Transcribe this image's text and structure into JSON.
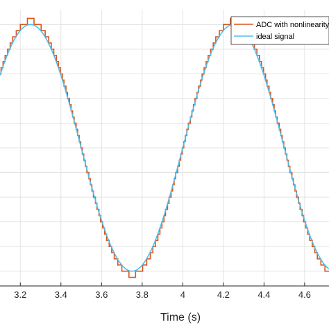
{
  "chart_data": {
    "type": "line",
    "title": "",
    "xlabel": "Time (s)",
    "ylabel": "",
    "xlim": [
      3.1,
      4.72
    ],
    "ylim": [
      -1.12,
      1.12
    ],
    "x_ticks": [
      3.2,
      3.4,
      3.6,
      3.8,
      4,
      4.2,
      4.4,
      4.6
    ],
    "x_tick_labels": [
      "3.2",
      "3.4",
      "3.6",
      "3.8",
      "4",
      "4.2",
      "4.4",
      "4.6"
    ],
    "grid": true,
    "legend_position": "top-right",
    "signal": {
      "frequency_hz": 1.0,
      "amplitude_ideal": 1.0,
      "amplitude_adc": 1.03,
      "peak_time_s": 3.25,
      "adc_step": 0.05
    },
    "series": [
      {
        "name": "ADC with nonlinearity",
        "color": "#d95319",
        "x": [
          3.1,
          3.15,
          3.2,
          3.25,
          3.3,
          3.35,
          3.4,
          3.45,
          3.5,
          3.55,
          3.6,
          3.65,
          3.7,
          3.75,
          3.8,
          3.85,
          3.9,
          3.95,
          4.0,
          4.05,
          4.1,
          4.15,
          4.2,
          4.25,
          4.3,
          4.35,
          4.4,
          4.45,
          4.5,
          4.55,
          4.6,
          4.65,
          4.7
        ],
        "y": [
          0.6,
          0.85,
          0.98,
          1.03,
          0.98,
          0.85,
          0.6,
          0.3,
          0.0,
          -0.3,
          -0.6,
          -0.85,
          -0.98,
          -1.03,
          -0.98,
          -0.85,
          -0.6,
          -0.3,
          0.0,
          0.3,
          0.6,
          0.85,
          0.98,
          1.03,
          0.98,
          0.85,
          0.6,
          0.3,
          0.0,
          -0.3,
          -0.6,
          -0.85,
          -0.98
        ]
      },
      {
        "name": "ideal signal",
        "color": "#4dbeee",
        "x": [
          3.1,
          3.15,
          3.2,
          3.25,
          3.3,
          3.35,
          3.4,
          3.45,
          3.5,
          3.55,
          3.6,
          3.65,
          3.7,
          3.75,
          3.8,
          3.85,
          3.9,
          3.95,
          4.0,
          4.05,
          4.1,
          4.15,
          4.2,
          4.25,
          4.3,
          4.35,
          4.4,
          4.45,
          4.5,
          4.55,
          4.6,
          4.65,
          4.7
        ],
        "y": [
          0.59,
          0.81,
          0.95,
          1.0,
          0.95,
          0.81,
          0.59,
          0.31,
          0.0,
          -0.31,
          -0.59,
          -0.81,
          -0.95,
          -1.0,
          -0.95,
          -0.81,
          -0.59,
          -0.31,
          0.0,
          0.31,
          0.59,
          0.81,
          0.95,
          1.0,
          0.95,
          0.81,
          0.59,
          0.31,
          0.0,
          -0.31,
          -0.59,
          -0.81,
          -0.95
        ]
      }
    ]
  }
}
